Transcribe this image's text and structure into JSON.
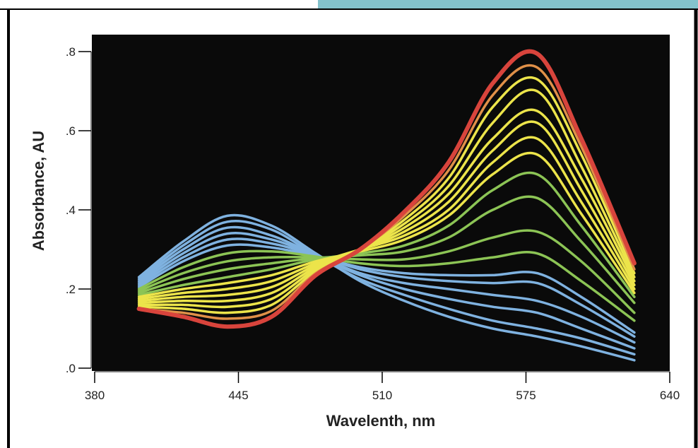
{
  "colors": {
    "plot_background": "#0a0a0a",
    "top_banner": "#84c2cc",
    "frame": "#000000",
    "blue": "#7fb2e0",
    "green": "#8cc455",
    "yellow": "#ece44a",
    "orange": "#e09048",
    "red": "#d8443c"
  },
  "chart_data": {
    "type": "line",
    "title": "",
    "xlabel": "Wavelenth, nm",
    "ylabel": "Absorbance, AU",
    "xlim": [
      380,
      640
    ],
    "ylim": [
      0,
      0.85
    ],
    "x_ticks": [
      380,
      445,
      510,
      575,
      640
    ],
    "x_tick_labels": [
      "380",
      "445",
      "510",
      "575",
      "640"
    ],
    "y_ticks": [
      0,
      0.2,
      0.4,
      0.6,
      0.8
    ],
    "y_tick_labels": [
      ".0",
      ".2",
      ".4",
      ".6",
      ".8"
    ],
    "grid": false,
    "legend": "none",
    "x": [
      400,
      420,
      440,
      460,
      480,
      500,
      520,
      540,
      560,
      580,
      600,
      624
    ],
    "series": [
      {
        "color": "blue",
        "values": [
          0.23,
          0.32,
          0.385,
          0.36,
          0.29,
          0.22,
          0.17,
          0.13,
          0.1,
          0.08,
          0.055,
          0.02
        ]
      },
      {
        "color": "blue",
        "values": [
          0.225,
          0.31,
          0.37,
          0.35,
          0.285,
          0.225,
          0.185,
          0.15,
          0.12,
          0.1,
          0.075,
          0.035
        ]
      },
      {
        "color": "blue",
        "values": [
          0.22,
          0.3,
          0.355,
          0.335,
          0.285,
          0.235,
          0.2,
          0.175,
          0.155,
          0.14,
          0.1,
          0.05
        ]
      },
      {
        "color": "blue",
        "values": [
          0.215,
          0.29,
          0.34,
          0.325,
          0.285,
          0.24,
          0.215,
          0.2,
          0.185,
          0.17,
          0.13,
          0.065
        ]
      },
      {
        "color": "blue",
        "values": [
          0.21,
          0.28,
          0.325,
          0.315,
          0.285,
          0.25,
          0.23,
          0.22,
          0.215,
          0.215,
          0.16,
          0.08
        ]
      },
      {
        "color": "blue",
        "values": [
          0.205,
          0.27,
          0.31,
          0.305,
          0.283,
          0.255,
          0.24,
          0.235,
          0.235,
          0.24,
          0.18,
          0.09
        ]
      },
      {
        "color": "green",
        "values": [
          0.2,
          0.255,
          0.29,
          0.295,
          0.282,
          0.265,
          0.258,
          0.265,
          0.28,
          0.29,
          0.22,
          0.12
        ]
      },
      {
        "color": "green",
        "values": [
          0.195,
          0.24,
          0.27,
          0.28,
          0.28,
          0.275,
          0.275,
          0.295,
          0.33,
          0.345,
          0.27,
          0.14
        ]
      },
      {
        "color": "green",
        "values": [
          0.19,
          0.225,
          0.25,
          0.265,
          0.278,
          0.285,
          0.295,
          0.33,
          0.4,
          0.43,
          0.32,
          0.165
        ]
      },
      {
        "color": "green",
        "values": [
          0.185,
          0.21,
          0.23,
          0.25,
          0.275,
          0.29,
          0.31,
          0.36,
          0.45,
          0.49,
          0.36,
          0.18
        ]
      },
      {
        "color": "yellow",
        "values": [
          0.18,
          0.2,
          0.215,
          0.235,
          0.27,
          0.295,
          0.325,
          0.385,
          0.49,
          0.54,
          0.39,
          0.19
        ]
      },
      {
        "color": "yellow",
        "values": [
          0.175,
          0.19,
          0.2,
          0.22,
          0.265,
          0.3,
          0.335,
          0.4,
          0.52,
          0.58,
          0.42,
          0.2
        ]
      },
      {
        "color": "yellow",
        "values": [
          0.17,
          0.18,
          0.185,
          0.205,
          0.26,
          0.3,
          0.345,
          0.42,
          0.55,
          0.62,
          0.45,
          0.21
        ]
      },
      {
        "color": "yellow",
        "values": [
          0.165,
          0.17,
          0.17,
          0.19,
          0.255,
          0.3,
          0.355,
          0.44,
          0.58,
          0.65,
          0.48,
          0.22
        ]
      },
      {
        "color": "yellow",
        "values": [
          0.16,
          0.16,
          0.155,
          0.175,
          0.25,
          0.3,
          0.365,
          0.46,
          0.62,
          0.7,
          0.51,
          0.23
        ]
      },
      {
        "color": "yellow",
        "values": [
          0.155,
          0.15,
          0.14,
          0.16,
          0.245,
          0.3,
          0.375,
          0.48,
          0.66,
          0.73,
          0.54,
          0.24
        ]
      },
      {
        "color": "orange",
        "values": [
          0.15,
          0.14,
          0.125,
          0.145,
          0.24,
          0.3,
          0.385,
          0.5,
          0.69,
          0.76,
          0.56,
          0.25
        ]
      },
      {
        "color": "red",
        "values": [
          0.15,
          0.13,
          0.105,
          0.13,
          0.235,
          0.3,
          0.395,
          0.52,
          0.72,
          0.795,
          0.58,
          0.265
        ]
      }
    ]
  }
}
